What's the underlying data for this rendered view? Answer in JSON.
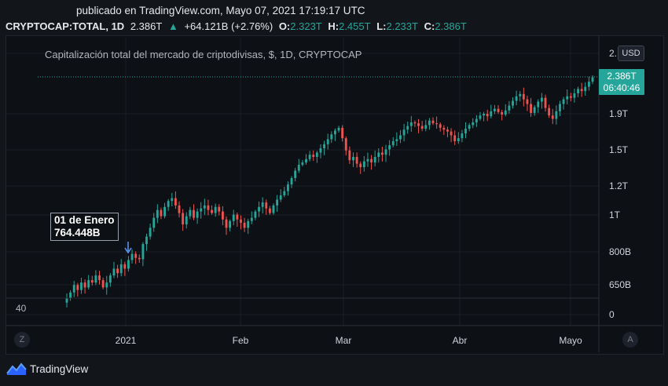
{
  "header": {
    "published": "publicado en TradingView.com, Mayo 07, 2021 17:19:17 UTC",
    "symbol": "CRYPTOCAP:TOTAL, 1D",
    "last": "2.386T",
    "change": "+64.121B (+2.76%)",
    "open_label": "O:",
    "open": "2.323T",
    "high_label": "H:",
    "high": "2.455T",
    "low_label": "L:",
    "low": "2.233T",
    "close_label": "C:",
    "close": "2.386T"
  },
  "chart_data": {
    "type": "candlestick",
    "title": "Capitalización total del mercado de criptodivisas, $, 1D, CRYPTOCAP",
    "currency": "USD",
    "y_scale": "log",
    "x_ticks": [
      "2021",
      "Feb",
      "Mar",
      "Abr",
      "Mayo"
    ],
    "y_ticks": [
      "2.",
      "1.9T",
      "1.5T",
      "1.2T",
      "1T",
      "800B",
      "650B",
      "0"
    ],
    "last_price": "2.386T",
    "countdown": "06:40:46",
    "annotation": {
      "date": "01 de Enero",
      "value": "764.448B"
    },
    "left_scale_value": "40",
    "colors": {
      "up": "#26a69a",
      "down": "#ef5350",
      "background": "#0d1014"
    },
    "closes_T": [
      0.6,
      0.62,
      0.65,
      0.63,
      0.66,
      0.64,
      0.67,
      0.66,
      0.69,
      0.67,
      0.64,
      0.66,
      0.69,
      0.72,
      0.7,
      0.74,
      0.72,
      0.76,
      0.79,
      0.77,
      0.764,
      0.84,
      0.88,
      0.93,
      0.99,
      1.04,
      1.0,
      1.06,
      1.1,
      1.12,
      1.07,
      1.02,
      0.95,
      1.0,
      1.04,
      0.99,
      1.03,
      1.05,
      1.07,
      1.04,
      1.02,
      1.06,
      1.03,
      0.98,
      0.93,
      0.97,
      1.01,
      0.98,
      0.96,
      0.93,
      0.97,
      0.99,
      1.03,
      1.06,
      1.09,
      1.05,
      1.02,
      1.07,
      1.11,
      1.14,
      1.17,
      1.22,
      1.27,
      1.33,
      1.38,
      1.4,
      1.43,
      1.47,
      1.45,
      1.49,
      1.53,
      1.57,
      1.62,
      1.67,
      1.71,
      1.74,
      1.63,
      1.51,
      1.42,
      1.45,
      1.39,
      1.36,
      1.41,
      1.43,
      1.4,
      1.45,
      1.49,
      1.47,
      1.52,
      1.56,
      1.6,
      1.62,
      1.66,
      1.72,
      1.76,
      1.8,
      1.79,
      1.76,
      1.73,
      1.77,
      1.82,
      1.79,
      1.78,
      1.74,
      1.72,
      1.7,
      1.66,
      1.6,
      1.63,
      1.68,
      1.73,
      1.77,
      1.8,
      1.84,
      1.88,
      1.9,
      1.87,
      1.93,
      1.96,
      1.92,
      1.89,
      1.94,
      2.0,
      2.06,
      2.12,
      2.15,
      2.08,
      2.02,
      1.91,
      1.98,
      2.05,
      2.1,
      1.97,
      1.88,
      1.84,
      1.93,
      2.02,
      2.08,
      2.12,
      2.1,
      2.16,
      2.22,
      2.19,
      2.25,
      2.323,
      2.386
    ]
  }
}
